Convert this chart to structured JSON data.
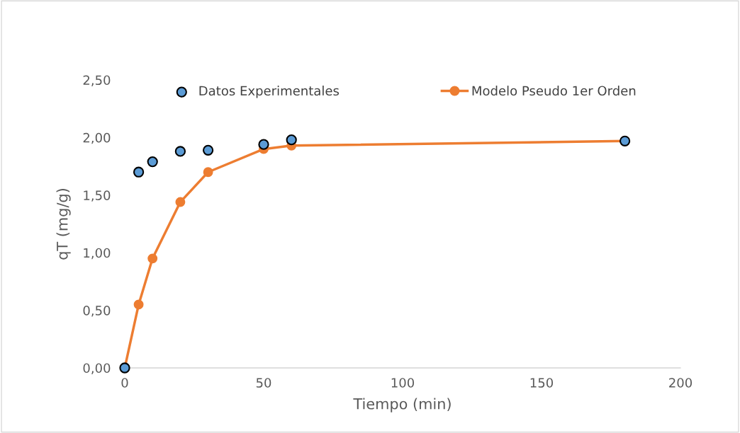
{
  "chart_data": {
    "type": "line",
    "xlabel": "Tiempo (min)",
    "ylabel": "qT (mg/g)",
    "x": [
      0,
      5,
      10,
      20,
      30,
      50,
      60,
      180
    ],
    "series": [
      {
        "name": "Datos Experimentales",
        "type": "scatter",
        "color": "#5b9bd5",
        "marker": "circle",
        "values": [
          0,
          1.7,
          1.79,
          1.88,
          1.89,
          1.94,
          1.98,
          1.97
        ]
      },
      {
        "name": "Modelo Pseudo 1er Orden",
        "color": "#ed7d31",
        "marker": "circle",
        "line_style": "solid",
        "values": [
          0,
          0.55,
          0.95,
          1.44,
          1.7,
          1.9,
          1.93,
          1.97
        ]
      }
    ],
    "xlim": [
      0,
      200
    ],
    "xticks": [
      0,
      50,
      100,
      150,
      200
    ],
    "ylim": [
      0,
      2.5
    ],
    "yticks": [
      {
        "value": 0,
        "label": "0,00"
      },
      {
        "value": 0.5,
        "label": "0,50"
      },
      {
        "value": 1,
        "label": "1,00"
      },
      {
        "value": 1.5,
        "label": "1,50"
      },
      {
        "value": 2,
        "label": "2,00"
      },
      {
        "value": 2.5,
        "label": "2,50"
      }
    ],
    "grid": false,
    "legend": "top"
  }
}
